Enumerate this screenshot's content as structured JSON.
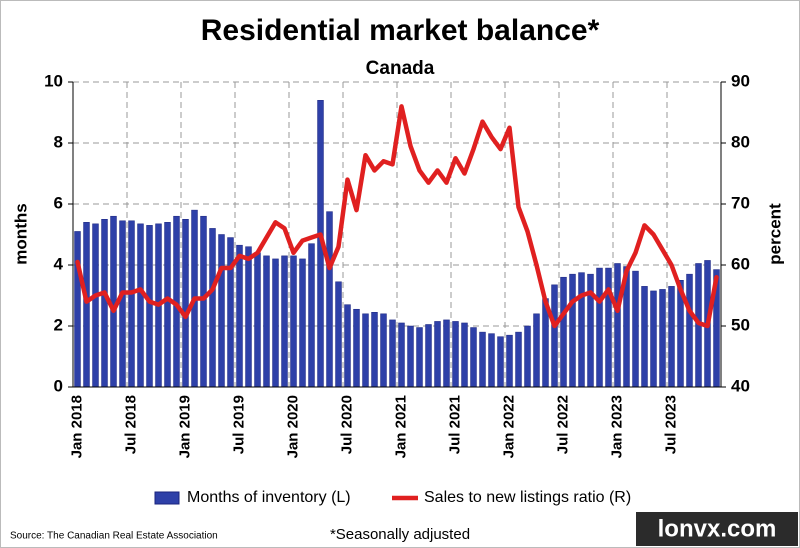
{
  "chart_data": {
    "type": "bar_line",
    "title": "Residential market balance*",
    "subtitle": "Canada",
    "y_label": "months",
    "y2_label": "percent",
    "footnote": "*Seasonally adjusted",
    "source": "Source: The Canadian Real Estate Association",
    "watermark": "lonvx.com",
    "categories": [
      "Jan 2018",
      null,
      null,
      null,
      null,
      null,
      "Jul 2018",
      null,
      null,
      null,
      null,
      null,
      "Jan 2019",
      null,
      null,
      null,
      null,
      null,
      "Jul 2019",
      null,
      null,
      null,
      null,
      null,
      "Jan 2020",
      null,
      null,
      null,
      null,
      null,
      "Jul 2020",
      null,
      null,
      null,
      null,
      null,
      "Jan 2021",
      null,
      null,
      null,
      null,
      null,
      "Jul 2021",
      null,
      null,
      null,
      null,
      null,
      "Jan 2022",
      null,
      null,
      null,
      null,
      null,
      "Jul 2022",
      null,
      null,
      null,
      null,
      null,
      "Jan 2023",
      null,
      null,
      null,
      null,
      null,
      "Jul 2023",
      null,
      null,
      null,
      null,
      null
    ],
    "series": [
      {
        "name": "Months of inventory (L)",
        "type": "bar",
        "color": "#2e40a8",
        "values": [
          5.1,
          5.4,
          5.35,
          5.5,
          5.6,
          5.45,
          5.45,
          5.35,
          5.3,
          5.35,
          5.4,
          5.6,
          5.5,
          5.8,
          5.6,
          5.2,
          5.0,
          4.9,
          4.65,
          4.6,
          4.4,
          4.3,
          4.2,
          4.3,
          4.3,
          4.2,
          4.7,
          9.4,
          5.75,
          3.45,
          2.7,
          2.55,
          2.4,
          2.45,
          2.4,
          2.2,
          2.1,
          2.0,
          1.95,
          2.05,
          2.15,
          2.2,
          2.15,
          2.1,
          1.95,
          1.8,
          1.75,
          1.65,
          1.7,
          1.8,
          2.0,
          2.4,
          2.9,
          3.35,
          3.6,
          3.7,
          3.75,
          3.7,
          3.9,
          3.9,
          4.05,
          3.95,
          3.8,
          3.3,
          3.15,
          3.2,
          3.3,
          3.5,
          3.7,
          4.05,
          4.15,
          3.85
        ]
      },
      {
        "name": "Sales to new listings ratio (R)",
        "type": "line",
        "axis": "y2",
        "color": "#e02020",
        "values": [
          60.5,
          54,
          55,
          55.5,
          52.5,
          55.5,
          55.5,
          56,
          54,
          53.5,
          54.5,
          53.5,
          51.5,
          54.5,
          54.5,
          56,
          59.5,
          59.5,
          61.5,
          61,
          62,
          64.5,
          67,
          66,
          62,
          64,
          64.5,
          65,
          59.5,
          63,
          74,
          69,
          78,
          75.5,
          77,
          76.5,
          86,
          79.5,
          75.5,
          73.5,
          75.5,
          73.5,
          77.5,
          75,
          79,
          83.5,
          81,
          79,
          82.5,
          69.5,
          65.5,
          60,
          54,
          50,
          52,
          54,
          55,
          55.5,
          54,
          56,
          52.5,
          59,
          62,
          66.5,
          65,
          62.5,
          60,
          56,
          52.5,
          50.5,
          50,
          58
        ]
      }
    ],
    "ylim": [
      0,
      10
    ],
    "yticks": [
      0,
      2,
      4,
      6,
      8,
      10
    ],
    "y2lim": [
      40,
      90
    ],
    "y2ticks": [
      40,
      50,
      60,
      70,
      80,
      90
    ],
    "grid": true
  }
}
